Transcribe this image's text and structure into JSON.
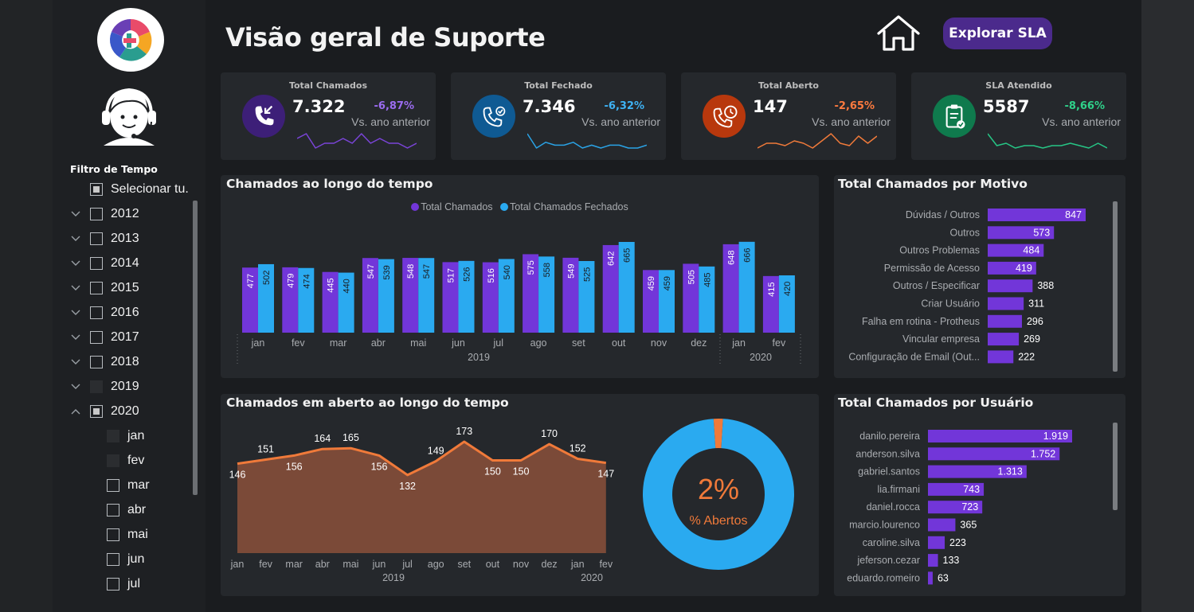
{
  "header": {
    "title": "Visão geral de Suporte",
    "sla_button": "Explorar SLA"
  },
  "filter": {
    "title": "Filtro de Tempo",
    "items": [
      {
        "label": "Selecionar tu.",
        "chevron": "",
        "box": "partial",
        "indent": 0
      },
      {
        "label": "2012",
        "chevron": "down",
        "box": "empty",
        "indent": 0
      },
      {
        "label": "2013",
        "chevron": "down",
        "box": "empty",
        "indent": 0
      },
      {
        "label": "2014",
        "chevron": "down",
        "box": "empty",
        "indent": 0
      },
      {
        "label": "2015",
        "chevron": "down",
        "box": "empty",
        "indent": 0
      },
      {
        "label": "2016",
        "chevron": "down",
        "box": "empty",
        "indent": 0
      },
      {
        "label": "2017",
        "chevron": "down",
        "box": "empty",
        "indent": 0
      },
      {
        "label": "2018",
        "chevron": "down",
        "box": "empty",
        "indent": 0
      },
      {
        "label": "2019",
        "chevron": "down",
        "box": "filled",
        "indent": 0
      },
      {
        "label": "2020",
        "chevron": "up",
        "box": "partial",
        "indent": 0
      },
      {
        "label": "jan",
        "chevron": "",
        "box": "filled",
        "indent": 1
      },
      {
        "label": "fev",
        "chevron": "",
        "box": "filled",
        "indent": 1
      },
      {
        "label": "mar",
        "chevron": "",
        "box": "empty",
        "indent": 1
      },
      {
        "label": "abr",
        "chevron": "",
        "box": "empty",
        "indent": 1
      },
      {
        "label": "mai",
        "chevron": "",
        "box": "empty",
        "indent": 1
      },
      {
        "label": "jun",
        "chevron": "",
        "box": "empty",
        "indent": 1
      },
      {
        "label": "jul",
        "chevron": "",
        "box": "empty",
        "indent": 1
      }
    ]
  },
  "kpis": [
    {
      "title": "Total Chamados",
      "value": "7.322",
      "delta": "-6,87%",
      "vs": "Vs. ano anterior",
      "icon": "incoming-call-icon",
      "icon_bg": "#3d1f78",
      "delta_color": "#9b6cf0",
      "spark_color": "#7a44d8",
      "spark": [
        5,
        6,
        3,
        4,
        4,
        5,
        4,
        6,
        4,
        5,
        4,
        4,
        3,
        4
      ]
    },
    {
      "title": "Total Fechado",
      "value": "7.346",
      "delta": "-6,32%",
      "vs": "Vs. ano anterior",
      "icon": "phone-check-icon",
      "icon_bg": "#0f5a93",
      "delta_color": "#3eb3f5",
      "spark_color": "#2aa3e6",
      "spark": [
        9,
        4,
        6,
        5,
        5,
        6,
        4,
        5,
        4,
        5,
        5,
        4,
        4,
        5
      ]
    },
    {
      "title": "Total Aberto",
      "value": "147",
      "delta": "-2,65%",
      "vs": "Vs. ano anterior",
      "icon": "phone-clock-icon",
      "icon_bg": "#b8380d",
      "delta_color": "#ff7b3f",
      "spark_color": "#f07a3a",
      "spark": [
        3,
        5,
        5,
        4,
        6,
        5,
        3,
        6,
        9,
        5,
        4,
        8,
        5,
        8
      ]
    },
    {
      "title": "SLA Atendido",
      "value": "5587",
      "delta": "-8,66%",
      "vs": "Vs. ano anterior",
      "icon": "clipboard-check-icon",
      "icon_bg": "#0f7a4d",
      "delta_color": "#2fd18a",
      "spark_color": "#26c585",
      "spark": [
        9,
        4,
        5,
        3,
        4,
        4,
        3,
        4,
        4,
        5,
        4,
        3,
        5,
        3
      ]
    }
  ],
  "colors": {
    "purple": "#7236d9",
    "blue": "#2aaaf0",
    "orange": "#f07a3a",
    "area": "#7b4a38"
  },
  "charts": {
    "over_time": {
      "title": "Chamados ao longo do tempo",
      "legend": [
        "Total Chamados",
        "Total Chamados Fechados"
      ]
    },
    "motivo": {
      "title": "Total Chamados por Motivo"
    },
    "aberto": {
      "title": "Chamados em aberto ao longo do tempo"
    },
    "donut": {
      "percent": "2%",
      "label": "% Abertos"
    },
    "usuario": {
      "title": "Total Chamados por Usuário"
    }
  },
  "chart_data": [
    {
      "type": "bar",
      "title": "Chamados ao longo do tempo",
      "categories": [
        "jan",
        "fev",
        "mar",
        "abr",
        "mai",
        "jun",
        "jul",
        "ago",
        "set",
        "out",
        "nov",
        "dez",
        "jan",
        "fev"
      ],
      "groups": [
        {
          "label": "2019",
          "count": 12
        },
        {
          "label": "2020",
          "count": 2
        }
      ],
      "series": [
        {
          "name": "Total Chamados",
          "values": [
            477,
            479,
            445,
            547,
            548,
            517,
            516,
            575,
            549,
            642,
            459,
            505,
            648,
            415
          ]
        },
        {
          "name": "Total Chamados Fechados",
          "values": [
            502,
            474,
            440,
            539,
            547,
            526,
            540,
            558,
            525,
            665,
            459,
            485,
            666,
            420
          ]
        }
      ],
      "labels": [
        [
          "477",
          "479",
          "445",
          "547",
          "548",
          "517",
          "516",
          "575",
          "549",
          "642",
          "459",
          "505",
          "648",
          "415"
        ],
        [
          "502",
          "474",
          "440",
          "539",
          "547",
          "526",
          "540",
          "558",
          "525",
          "665",
          "459",
          "485",
          "666",
          "420"
        ]
      ]
    },
    {
      "type": "bar",
      "title": "Total Chamados por Motivo",
      "orientation": "horizontal",
      "categories": [
        "Dúvidas / Outros",
        "Outros",
        "Outros Problemas",
        "Permissão de Acesso",
        "Outros / Especificar",
        "Criar Usuário",
        "Falha em rotina - Protheus",
        "Vincular empresa",
        "Configuração de Email (Out..."
      ],
      "values": [
        847,
        573,
        484,
        419,
        388,
        311,
        296,
        269,
        222
      ],
      "labels": [
        "847",
        "573",
        "484",
        "419",
        "388",
        "311",
        "296",
        "269",
        "222"
      ]
    },
    {
      "type": "area",
      "title": "Chamados em aberto ao longo do tempo",
      "categories": [
        "jan",
        "fev",
        "mar",
        "abr",
        "mai",
        "jun",
        "jul",
        "ago",
        "set",
        "out",
        "nov",
        "dez",
        "jan",
        "fev"
      ],
      "groups": [
        {
          "label": "2019",
          "count": 12
        },
        {
          "label": "2020",
          "count": 2
        }
      ],
      "values": [
        146,
        151,
        156,
        164,
        165,
        156,
        132,
        149,
        173,
        150,
        150,
        170,
        152,
        147
      ],
      "labels": [
        "146",
        "151",
        "156",
        "164",
        "165",
        "156",
        "132",
        "149",
        "173",
        "150",
        "150",
        "170",
        "152",
        "147"
      ]
    },
    {
      "type": "pie",
      "values": [
        2,
        98
      ]
    },
    {
      "type": "bar",
      "title": "Total Chamados por Usuário",
      "orientation": "horizontal",
      "categories": [
        "danilo.pereira",
        "anderson.silva",
        "gabriel.santos",
        "lia.firmani",
        "daniel.rocca",
        "marcio.lourenco",
        "caroline.silva",
        "jeferson.cezar",
        "eduardo.romeiro"
      ],
      "values": [
        1919,
        1752,
        1313,
        743,
        723,
        365,
        223,
        133,
        63
      ],
      "labels": [
        "1.919",
        "1.752",
        "1.313",
        "743",
        "723",
        "365",
        "223",
        "133",
        "63"
      ]
    }
  ]
}
